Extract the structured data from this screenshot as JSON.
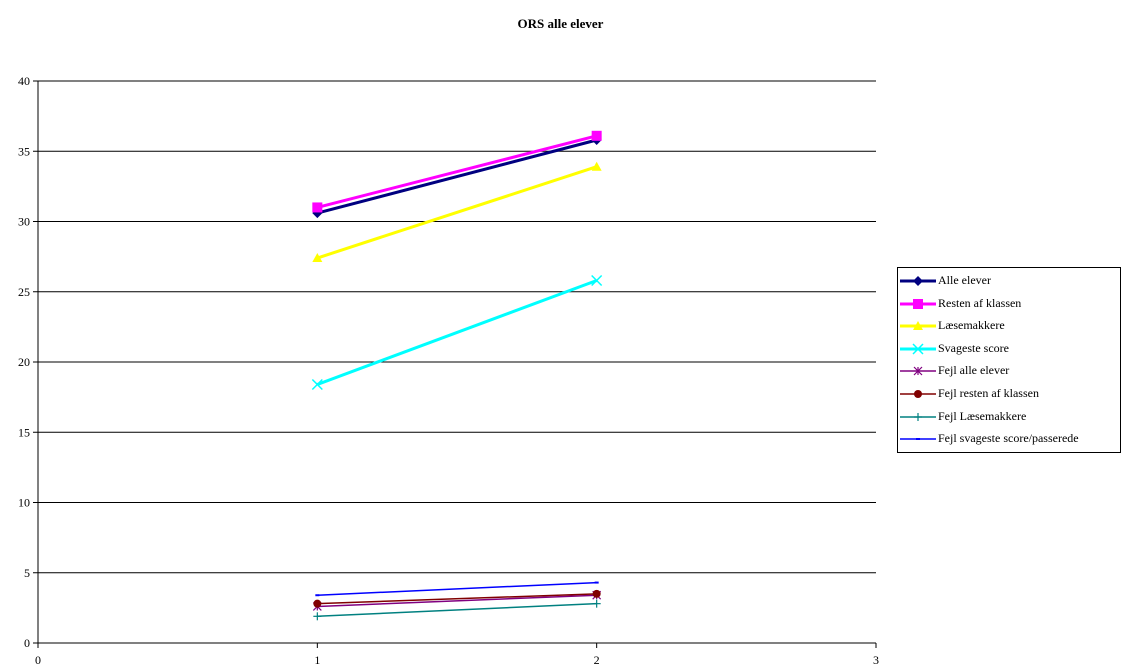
{
  "chart_data": {
    "type": "line",
    "title": "ORS alle elever",
    "xlabel": "",
    "ylabel": "",
    "xlim": [
      0,
      3
    ],
    "ylim": [
      0,
      40
    ],
    "x_ticks": [
      0,
      1,
      2,
      3
    ],
    "y_ticks": [
      0,
      5,
      10,
      15,
      20,
      25,
      30,
      35,
      40
    ],
    "grid": "horizontal",
    "legend_position": "right",
    "series": [
      {
        "name": "Alle elever",
        "x": [
          1,
          2
        ],
        "y": [
          30.6,
          35.8
        ],
        "color": "#000080",
        "marker": "diamond"
      },
      {
        "name": "Resten af klassen",
        "x": [
          1,
          2
        ],
        "y": [
          31.0,
          36.1
        ],
        "color": "#FF00FF",
        "marker": "square"
      },
      {
        "name": "Læsemakkere",
        "x": [
          1,
          2
        ],
        "y": [
          27.4,
          33.9
        ],
        "color": "#FFFF00",
        "marker": "triangle"
      },
      {
        "name": "Svageste score",
        "x": [
          1,
          2
        ],
        "y": [
          18.4,
          25.8
        ],
        "color": "#00FFFF",
        "marker": "x"
      },
      {
        "name": "Fejl alle elever",
        "x": [
          1,
          2
        ],
        "y": [
          2.6,
          3.4
        ],
        "color": "#800080",
        "marker": "star"
      },
      {
        "name": "Fejl resten af klassen",
        "x": [
          1,
          2
        ],
        "y": [
          2.8,
          3.5
        ],
        "color": "#800000",
        "marker": "circle"
      },
      {
        "name": "Fejl Læsemakkere",
        "x": [
          1,
          2
        ],
        "y": [
          1.9,
          2.8
        ],
        "color": "#008080",
        "marker": "plus"
      },
      {
        "name": "Fejl svageste score/passerede",
        "x": [
          1,
          2
        ],
        "y": [
          3.4,
          4.3
        ],
        "color": "#0000FF",
        "marker": "dash"
      }
    ]
  }
}
